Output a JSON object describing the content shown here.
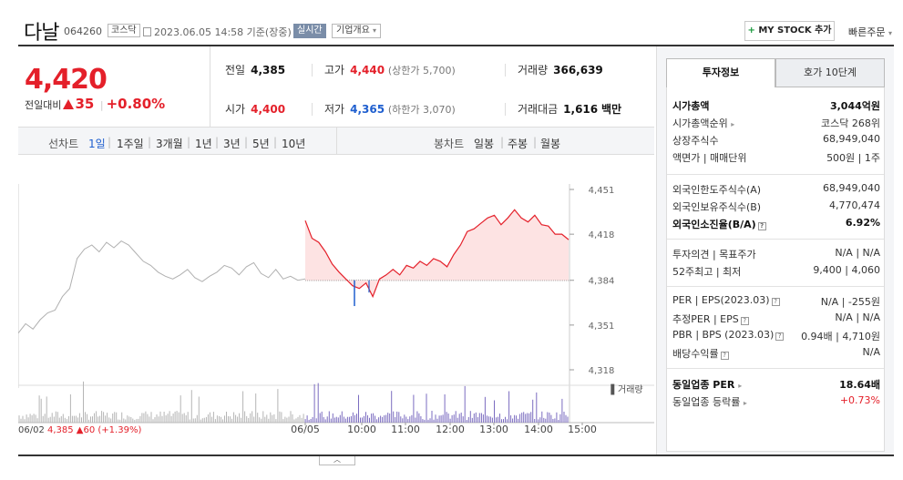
{
  "header": {
    "name": "다날",
    "code": "064260",
    "market": "코스닥",
    "datetime": "2023.06.05 14:58 기준(장중)",
    "realtime": "실시간",
    "company_info": "기업개요",
    "mystock_label": "MY STOCK 추가",
    "quick_order": "빠른주문"
  },
  "price": {
    "current": "4,420",
    "prev_label": "전일대비",
    "change": "35",
    "change_pct": "+0.80%"
  },
  "quotes": {
    "prev_label": "전일",
    "prev_value": "4,385",
    "high_label": "고가",
    "high_value": "4,440",
    "upper_limit": "(상한가 5,700)",
    "volume_label": "거래량",
    "volume_value": "366,639",
    "open_label": "시가",
    "open_value": "4,400",
    "low_label": "저가",
    "low_value": "4,365",
    "lower_limit": "(하한가 3,070)",
    "amount_label": "거래대금",
    "amount_value": "1,616",
    "amount_unit": "백만"
  },
  "period_bar": {
    "line_label": "선차트",
    "periods": [
      "1일",
      "1주일",
      "3개월",
      "1년",
      "3년",
      "5년",
      "10년"
    ],
    "selected": "1일",
    "candle_label": "봉차트",
    "candles": [
      "일봉",
      "주봉",
      "월봉"
    ]
  },
  "chart_data": {
    "type": "line",
    "y_ticks": [
      "4,451",
      "4,418",
      "4,384",
      "4,351",
      "4,318"
    ],
    "ylim": [
      4318,
      4451
    ],
    "baseline": 4384,
    "x_ticks": [
      "06/05",
      "10:00",
      "11:00",
      "12:00",
      "13:00",
      "14:00",
      "15:00"
    ],
    "prev_day_label": "06/02",
    "prev_day_price": "4,385",
    "prev_day_change": "60",
    "prev_day_pct": "(+1.39%)",
    "volume_label": "거래량",
    "series": [
      {
        "x": "06/02",
        "values": [
          4345,
          4352,
          4348,
          4355,
          4360,
          4362,
          4372,
          4378,
          4400,
          4407,
          4410,
          4405,
          4412,
          4408,
          4413,
          4410,
          4404,
          4398,
          4395,
          4390,
          4387,
          4385,
          4388,
          4392,
          4386,
          4383,
          4387,
          4390,
          4395,
          4393,
          4388,
          4394,
          4397,
          4389,
          4386,
          4392,
          4385,
          4387,
          4384,
          4385
        ]
      },
      {
        "x": "06/05",
        "values": [
          4428,
          4415,
          4412,
          4405,
          4396,
          4390,
          4385,
          4380,
          4378,
          4382,
          4372,
          4385,
          4388,
          4392,
          4388,
          4395,
          4393,
          4398,
          4395,
          4400,
          4398,
          4394,
          4403,
          4410,
          4420,
          4422,
          4426,
          4430,
          4432,
          4425,
          4430,
          4436,
          4430,
          4427,
          4432,
          4425,
          4424,
          4418,
          4418,
          4414
        ]
      }
    ]
  },
  "right_panel": {
    "tab_active": "투자정보",
    "tab_other": "호가 10단계",
    "market_cap_label": "시가총액",
    "market_cap_value": "3,044억원",
    "cap_rank_label": "시가총액순위",
    "cap_rank_value": "코스닥 268위",
    "shares_label": "상장주식수",
    "shares_value": "68,949,040",
    "face_label": "액면가 | 매매단위",
    "face_value": "500원 | 1주",
    "foreign_limit_label": "외국인한도주식수(A)",
    "foreign_limit_value": "68,949,040",
    "foreign_hold_label": "외국인보유주식수(B)",
    "foreign_hold_value": "4,770,474",
    "foreign_ratio_label": "외국인소진율(B/A)",
    "foreign_ratio_value": "6.92%",
    "opinion_label": "투자의견 | 목표주가",
    "opinion_value": "N/A | N/A",
    "week52_label": "52주최고 | 최저",
    "week52_value": "9,400 | 4,060",
    "per_label": "PER | EPS(2023.03)",
    "per_value": "N/A | -255원",
    "est_label": "추정PER | EPS",
    "est_value": "N/A | N/A",
    "pbr_label": "PBR | BPS (2023.03)",
    "pbr_value": "0.94배 | 4,710원",
    "div_label": "배당수익률",
    "div_value": "N/A",
    "sector_per_label": "동일업종 PER",
    "sector_per_value": "18.64배",
    "sector_rate_label": "동일업종 등락률",
    "sector_rate_value": "+0.73%"
  }
}
